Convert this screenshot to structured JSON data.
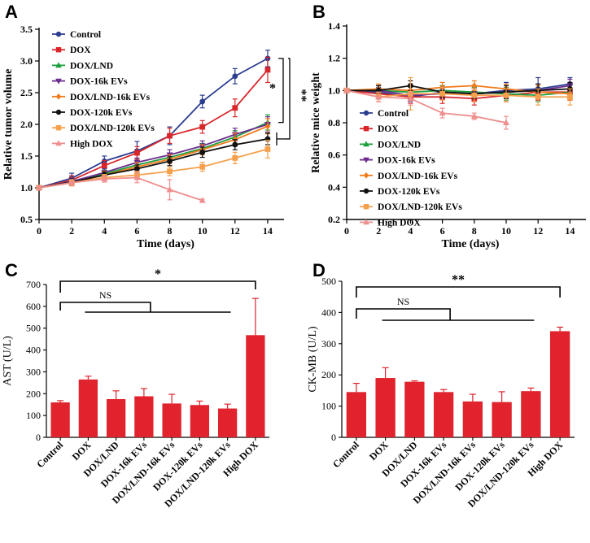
{
  "chart_data": [
    {
      "type": "line",
      "panel": "A",
      "ylabel": "Relative tumor volume",
      "xlabel": "Time (days)",
      "xlim": [
        0,
        15
      ],
      "ylim": [
        0.5,
        3.5
      ],
      "xticks": [
        0,
        2,
        4,
        6,
        8,
        10,
        12,
        14
      ],
      "yticks": [
        "0.5",
        "1.0",
        "1.5",
        "2.0",
        "2.5",
        "3.0",
        "3.5"
      ],
      "significance": [
        "*",
        "**"
      ],
      "series": [
        {
          "name": "Control",
          "color": "#2b3d8f",
          "marker": "circle",
          "x": [
            0,
            2,
            4,
            6,
            8,
            10,
            12,
            14
          ],
          "y": [
            1.0,
            1.15,
            1.42,
            1.58,
            1.82,
            2.36,
            2.76,
            3.04
          ],
          "err": [
            0.02,
            0.08,
            0.08,
            0.15,
            0.14,
            0.1,
            0.12,
            0.13
          ]
        },
        {
          "name": "DOX",
          "color": "#d9262b",
          "marker": "square",
          "x": [
            0,
            2,
            4,
            6,
            8,
            10,
            12,
            14
          ],
          "y": [
            1.0,
            1.12,
            1.35,
            1.55,
            1.82,
            1.96,
            2.26,
            2.86
          ],
          "err": [
            0.02,
            0.07,
            0.08,
            0.1,
            0.12,
            0.1,
            0.14,
            0.2
          ]
        },
        {
          "name": "DOX/LND",
          "color": "#1b9e3c",
          "marker": "triangle",
          "x": [
            0,
            2,
            4,
            6,
            8,
            10,
            12,
            14
          ],
          "y": [
            1.0,
            1.1,
            1.22,
            1.36,
            1.48,
            1.62,
            1.8,
            2.03
          ],
          "err": [
            0.02,
            0.05,
            0.06,
            0.07,
            0.07,
            0.08,
            0.1,
            0.12
          ]
        },
        {
          "name": "DOX-16k EVs",
          "color": "#6a2c8e",
          "marker": "triangle-down",
          "x": [
            0,
            2,
            4,
            6,
            8,
            10,
            12,
            14
          ],
          "y": [
            1.0,
            1.1,
            1.24,
            1.4,
            1.52,
            1.66,
            1.84,
            2.0
          ],
          "err": [
            0.02,
            0.05,
            0.06,
            0.07,
            0.08,
            0.08,
            0.1,
            0.12
          ]
        },
        {
          "name": "DOX/LND-16k EVs",
          "color": "#f07a1a",
          "marker": "diamond",
          "x": [
            0,
            2,
            4,
            6,
            8,
            10,
            12,
            14
          ],
          "y": [
            1.0,
            1.08,
            1.2,
            1.33,
            1.45,
            1.6,
            1.76,
            1.97
          ],
          "err": [
            0.02,
            0.05,
            0.06,
            0.07,
            0.07,
            0.08,
            0.1,
            0.12
          ]
        },
        {
          "name": "DOX-120k EVs",
          "color": "#111111",
          "marker": "circle",
          "x": [
            0,
            2,
            4,
            6,
            8,
            10,
            12,
            14
          ],
          "y": [
            1.0,
            1.09,
            1.2,
            1.3,
            1.42,
            1.56,
            1.68,
            1.77
          ],
          "err": [
            0.02,
            0.05,
            0.05,
            0.06,
            0.07,
            0.08,
            0.08,
            0.09
          ]
        },
        {
          "name": "DOX/LND-120k EVs",
          "color": "#f5a04d",
          "marker": "square",
          "x": [
            0,
            2,
            4,
            6,
            8,
            10,
            12,
            14
          ],
          "y": [
            1.0,
            1.08,
            1.16,
            1.2,
            1.26,
            1.33,
            1.47,
            1.61
          ],
          "err": [
            0.02,
            0.05,
            0.05,
            0.06,
            0.07,
            0.07,
            0.09,
            0.14
          ]
        },
        {
          "name": "High DOX",
          "color": "#ee8e8e",
          "marker": "triangle",
          "x": [
            0,
            2,
            4,
            6,
            8,
            10
          ],
          "y": [
            1.0,
            1.08,
            1.14,
            1.16,
            0.97,
            0.8
          ],
          "err": [
            0.02,
            0.04,
            0.05,
            0.08,
            0.16,
            0.02
          ]
        }
      ]
    },
    {
      "type": "line",
      "panel": "B",
      "ylabel": "Relative mice weight",
      "xlabel": "Time (days)",
      "xlim": [
        0,
        15
      ],
      "ylim": [
        0.2,
        1.4
      ],
      "xticks": [
        0,
        2,
        4,
        6,
        8,
        10,
        12,
        14
      ],
      "yticks": [
        "0.2",
        "0.4",
        "0.6",
        "0.8",
        "1.0",
        "1.2",
        "1.4"
      ],
      "series": [
        {
          "name": "Control",
          "color": "#2b3d8f",
          "marker": "circle",
          "x": [
            0,
            2,
            4,
            6,
            8,
            10,
            12,
            14
          ],
          "y": [
            1.0,
            0.99,
            0.96,
            0.99,
            0.98,
            1.0,
            1.01,
            1.04
          ],
          "err": [
            0.01,
            0.03,
            0.03,
            0.04,
            0.04,
            0.05,
            0.07,
            0.04
          ]
        },
        {
          "name": "DOX",
          "color": "#d9262b",
          "marker": "square",
          "x": [
            0,
            2,
            4,
            6,
            8,
            10,
            12,
            14
          ],
          "y": [
            1.0,
            0.98,
            0.96,
            0.96,
            0.95,
            0.97,
            0.99,
            0.99
          ],
          "err": [
            0.01,
            0.03,
            0.04,
            0.04,
            0.04,
            0.04,
            0.05,
            0.05
          ]
        },
        {
          "name": "DOX/LND",
          "color": "#1b9e3c",
          "marker": "triangle",
          "x": [
            0,
            2,
            4,
            6,
            8,
            10,
            12,
            14
          ],
          "y": [
            1.0,
            1.0,
            0.99,
            1.0,
            0.99,
            0.98,
            0.97,
            0.99
          ],
          "err": [
            0.01,
            0.03,
            0.03,
            0.03,
            0.03,
            0.04,
            0.04,
            0.04
          ]
        },
        {
          "name": "DOX-16k EVs",
          "color": "#6a2c8e",
          "marker": "triangle-down",
          "x": [
            0,
            2,
            4,
            6,
            8,
            10,
            12,
            14
          ],
          "y": [
            1.0,
            1.0,
            0.97,
            0.98,
            0.98,
            0.99,
            1.0,
            1.03
          ],
          "err": [
            0.01,
            0.03,
            0.03,
            0.03,
            0.03,
            0.04,
            0.04,
            0.04
          ]
        },
        {
          "name": "DOX/LND-16k EVs",
          "color": "#f07a1a",
          "marker": "diamond",
          "x": [
            0,
            2,
            4,
            6,
            8,
            10,
            12,
            14
          ],
          "y": [
            1.0,
            1.01,
            1.0,
            1.02,
            1.03,
            1.01,
            0.99,
            0.98
          ],
          "err": [
            0.01,
            0.03,
            0.04,
            0.03,
            0.03,
            0.03,
            0.04,
            0.04
          ]
        },
        {
          "name": "DOX-120k EVs",
          "color": "#111111",
          "marker": "circle",
          "x": [
            0,
            2,
            4,
            6,
            8,
            10,
            12,
            14
          ],
          "y": [
            1.0,
            1.0,
            1.03,
            0.99,
            0.98,
            0.99,
            1.0,
            1.01
          ],
          "err": [
            0.01,
            0.03,
            0.03,
            0.03,
            0.03,
            0.04,
            0.04,
            0.04
          ]
        },
        {
          "name": "DOX/LND-120k EVs",
          "color": "#f5a04d",
          "marker": "square",
          "x": [
            0,
            2,
            4,
            6,
            8,
            10,
            12,
            14
          ],
          "y": [
            1.0,
            0.96,
            0.98,
            0.98,
            0.97,
            0.97,
            0.96,
            0.96
          ],
          "err": [
            0.01,
            0.03,
            0.1,
            0.04,
            0.04,
            0.04,
            0.05,
            0.05
          ]
        },
        {
          "name": "High DOX",
          "color": "#ee8e8e",
          "marker": "triangle",
          "x": [
            0,
            2,
            4,
            6,
            8,
            10
          ],
          "y": [
            1.0,
            0.96,
            0.95,
            0.86,
            0.84,
            0.8
          ],
          "err": [
            0.01,
            0.03,
            0.04,
            0.03,
            0.02,
            0.04
          ]
        }
      ]
    },
    {
      "type": "bar",
      "panel": "C",
      "ylabel": "AST (U/L)",
      "ylim": [
        0,
        700
      ],
      "yticks": [
        "0",
        "100",
        "200",
        "300",
        "400",
        "500",
        "600",
        "700"
      ],
      "bar_color": "#e0232d",
      "categories": [
        "Control",
        "DOX",
        "DOX/LND",
        "DOX-16k EVs",
        "DOX/LND-16k EVs",
        "DOX-120k EVs",
        "DOX/LND-120k EVs",
        "High DOX"
      ],
      "values": [
        160,
        265,
        175,
        188,
        155,
        148,
        132,
        468
      ],
      "errors": [
        8,
        15,
        38,
        35,
        42,
        18,
        20,
        168
      ],
      "annotations": {
        "top": "*",
        "inner": "NS"
      }
    },
    {
      "type": "bar",
      "panel": "D",
      "ylabel": "CK-MB (U/L)",
      "ylim": [
        0,
        500
      ],
      "yticks": [
        "0",
        "100",
        "200",
        "300",
        "400",
        "500"
      ],
      "bar_color": "#e0232d",
      "categories": [
        "Control",
        "DOX",
        "DOX/LND",
        "DOX-16k EVs",
        "DOX/LND-16k EVs",
        "DOX-120k EVs",
        "DOX/LND-120k EVs",
        "High DOX"
      ],
      "values": [
        145,
        190,
        178,
        145,
        115,
        113,
        148,
        340
      ],
      "errors": [
        28,
        33,
        3,
        8,
        23,
        33,
        10,
        13
      ],
      "annotations": {
        "top": "**",
        "inner": "NS"
      }
    }
  ]
}
